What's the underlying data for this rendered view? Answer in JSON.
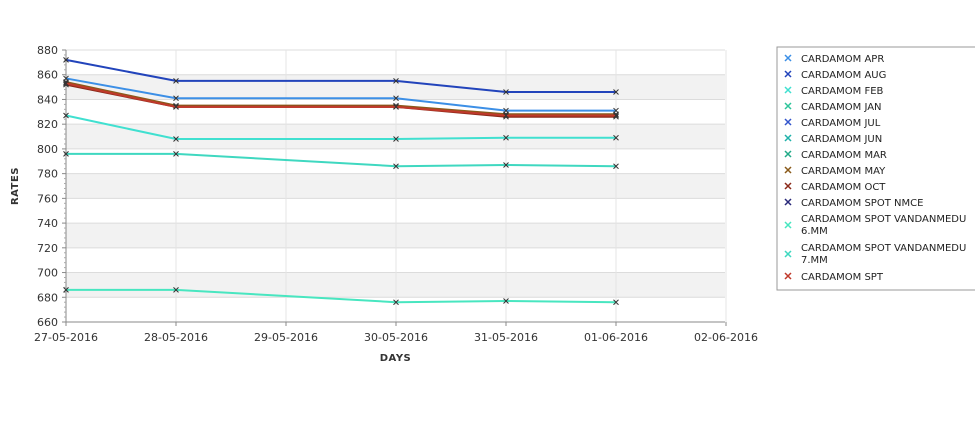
{
  "chart_data": {
    "type": "line",
    "title": "",
    "xlabel": "DAYS",
    "ylabel": "RATES",
    "ylim": [
      660,
      880
    ],
    "yticks": [
      660,
      680,
      700,
      720,
      740,
      760,
      780,
      800,
      820,
      840,
      860,
      880
    ],
    "x_ticks": [
      "27-05-2016",
      "28-05-2016",
      "29-05-2016",
      "30-05-2016",
      "31-05-2016",
      "01-06-2016",
      "02-06-2016"
    ],
    "grid": true,
    "legend_position": "right",
    "x": [
      "27-05-2016",
      "28-05-2016",
      "30-05-2016",
      "31-05-2016",
      "01-06-2016"
    ],
    "series": [
      {
        "name": "CARDAMOM APR",
        "color": "#3c8fe6",
        "values": [
          857,
          841,
          841,
          831,
          831
        ]
      },
      {
        "name": "CARDAMOM AUG",
        "color": "#2244bb",
        "values": [
          872,
          855,
          855,
          846,
          846
        ]
      },
      {
        "name": "CARDAMOM FEB",
        "color": "#40e0d0",
        "values": [
          827,
          808,
          808,
          809,
          809
        ]
      },
      {
        "name": "CARDAMOM JAN",
        "color": "#2ec49a",
        "values": [
          null,
          null,
          null,
          null,
          null
        ]
      },
      {
        "name": "CARDAMOM JUL",
        "color": "#3355cc",
        "values": [
          null,
          null,
          null,
          null,
          null
        ]
      },
      {
        "name": "CARDAMOM JUN",
        "color": "#20b2aa",
        "values": [
          null,
          null,
          null,
          null,
          null
        ]
      },
      {
        "name": "CARDAMOM MAR",
        "color": "#22aa88",
        "values": [
          null,
          null,
          null,
          null,
          null
        ]
      },
      {
        "name": "CARDAMOM MAY",
        "color": "#8a5a1a",
        "values": [
          854,
          835,
          835,
          828,
          828
        ]
      },
      {
        "name": "CARDAMOM OCT",
        "color": "#8b2a1a",
        "values": [
          852,
          834,
          834,
          826,
          826
        ]
      },
      {
        "name": "CARDAMOM SPOT NMCE",
        "color": "#2a2a7a",
        "values": [
          null,
          null,
          null,
          null,
          null
        ]
      },
      {
        "name": "CARDAMOM SPOT VANDANMEDU\n6.MM",
        "color": "#48e6c0",
        "values": [
          686,
          686,
          676,
          677,
          676
        ]
      },
      {
        "name": "CARDAMOM SPOT VANDANMEDU\n7.MM",
        "color": "#3fd8c0",
        "values": [
          796,
          796,
          786,
          787,
          786
        ]
      },
      {
        "name": "CARDAMOM SPT",
        "color": "#c0392b",
        "values": [
          853,
          834,
          834,
          827,
          827
        ]
      }
    ]
  }
}
